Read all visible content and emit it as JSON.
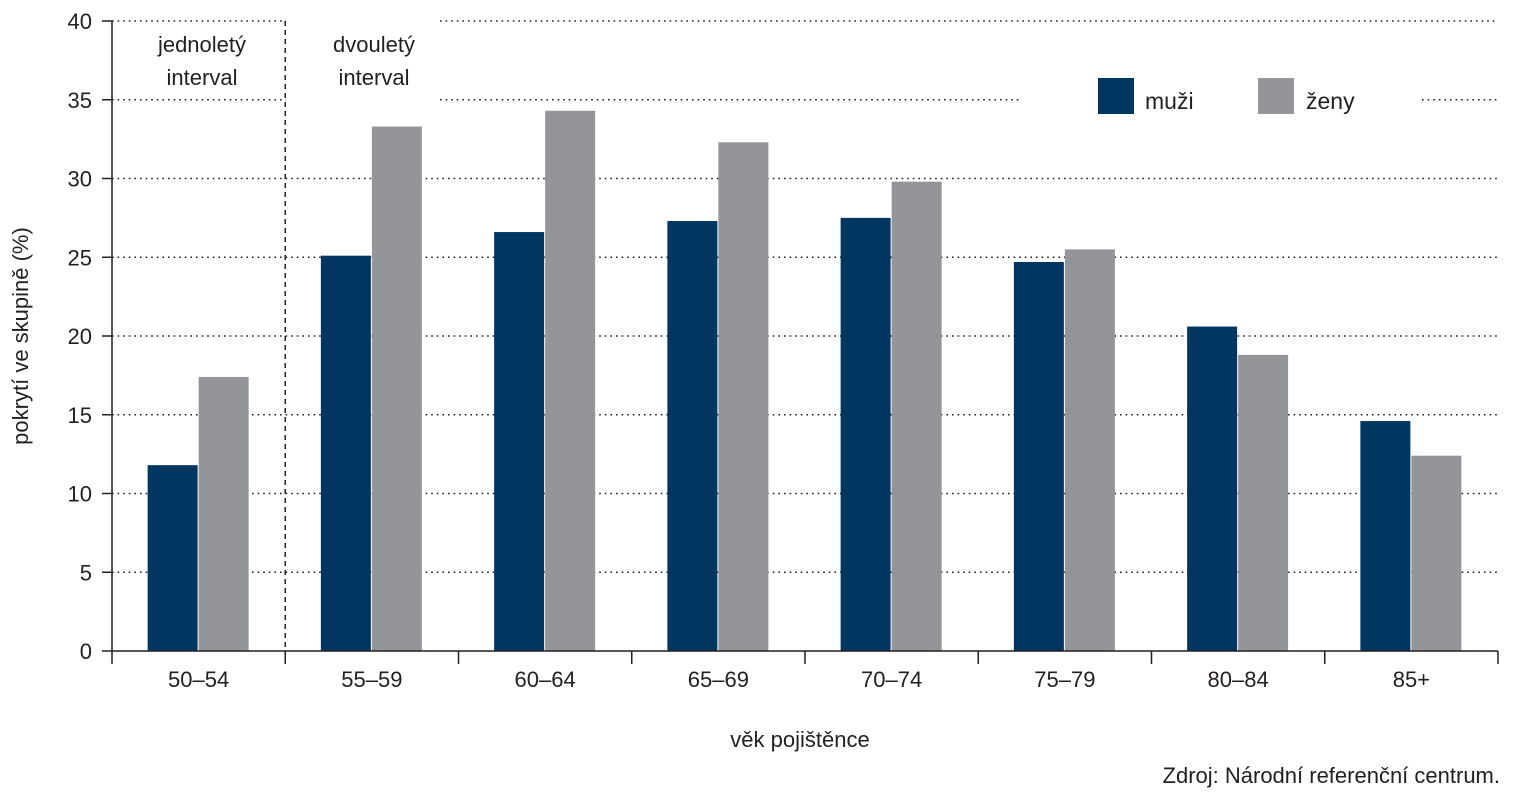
{
  "chart_data": {
    "type": "bar",
    "title": "",
    "xlabel": "věk pojištěnce",
    "ylabel": "pokrytí ve skupině (%)",
    "ylim": [
      0,
      40
    ],
    "yticks": [
      0,
      5,
      10,
      15,
      20,
      25,
      30,
      35,
      40
    ],
    "grid": "horizontal dotted",
    "legend_position": "top-right",
    "categories": [
      "50–54",
      "55–59",
      "60–64",
      "65–69",
      "70–74",
      "75–79",
      "80–84",
      "85+"
    ],
    "series": [
      {
        "name": "muži",
        "color": "#003660",
        "values": [
          11.8,
          25.1,
          26.6,
          27.3,
          27.5,
          24.7,
          20.6,
          14.6
        ]
      },
      {
        "name": "ženy",
        "color": "#939598",
        "values": [
          17.4,
          33.3,
          34.3,
          32.3,
          29.8,
          25.5,
          18.8,
          12.4
        ]
      }
    ],
    "annotations": {
      "left_region": "jednoletý interval",
      "right_region": "dvouletý interval"
    },
    "source": "Zdroj: Národní referenční centrum."
  }
}
